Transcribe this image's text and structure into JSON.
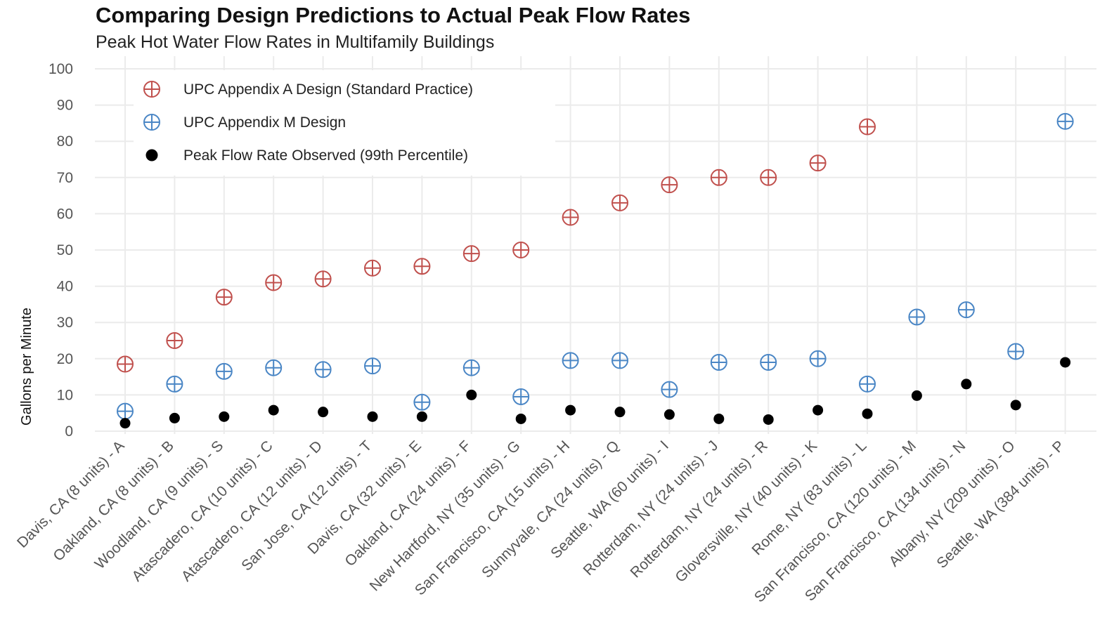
{
  "chart_data": {
    "type": "scatter",
    "title": "Comparing Design Predictions to Actual Peak Flow Rates",
    "subtitle": "Peak Hot Water Flow Rates in Multifamily Buildings",
    "ylabel": "Gallons per Minute",
    "xlabel": "",
    "ylim": [
      0,
      100
    ],
    "yticks": [
      0,
      10,
      20,
      30,
      40,
      50,
      60,
      70,
      80,
      90,
      100
    ],
    "grid": true,
    "legend_position": "top-left",
    "categories": [
      "Davis, CA (8 units) - A",
      "Oakland, CA (8 units) - B",
      "Woodland, CA (9 units) - S",
      "Atascadero, CA (10 units) - C",
      "Atascadero, CA (12 units) - D",
      "San Jose, CA (12 units) - T",
      "Davis, CA (32 units) - E",
      "Oakland, CA (24 units) - F",
      "New Hartford, NY  (35 units) - G",
      "San Francisco, CA (15 units) - H",
      "Sunnyvale, CA (24 units) - Q",
      "Seattle, WA (60 units) - I",
      "Rotterdam, NY (24 units) - J",
      "Rotterdam, NY (24 units) - R",
      "Gloversville, NY (40 units) - K",
      "Rome, NY (83 units) - L",
      "San Francisco, CA (120 units) - M",
      "San Francisco, CA (134 units) - N",
      "Albany, NY (209 units) - O",
      "Seattle, WA (384 units) - P"
    ],
    "series": [
      {
        "name": "UPC Appendix A Design (Standard Practice)",
        "color": "#c0504d",
        "marker": "circle-plus",
        "values": [
          18.5,
          25,
          37,
          41,
          42,
          45,
          45.5,
          49,
          50,
          59,
          63,
          68,
          70,
          70,
          74,
          84,
          null,
          null,
          null,
          null
        ]
      },
      {
        "name": "UPC Appendix M Design",
        "color": "#4a86c5",
        "marker": "circle-plus",
        "values": [
          5.5,
          13,
          16.5,
          17.5,
          17,
          18,
          8,
          17.5,
          9.5,
          19.5,
          19.5,
          11.5,
          19,
          19,
          20,
          13,
          31.5,
          33.5,
          22,
          85.5
        ]
      },
      {
        "name": "Peak Flow Rate Observed (99th Percentile)",
        "color": "#000000",
        "marker": "dot",
        "values": [
          2.2,
          3.6,
          4,
          5.8,
          5.3,
          4,
          4,
          10,
          3.4,
          5.8,
          5.3,
          4.6,
          3.4,
          3.2,
          5.8,
          4.8,
          9.8,
          13,
          7.2,
          19
        ]
      }
    ]
  }
}
